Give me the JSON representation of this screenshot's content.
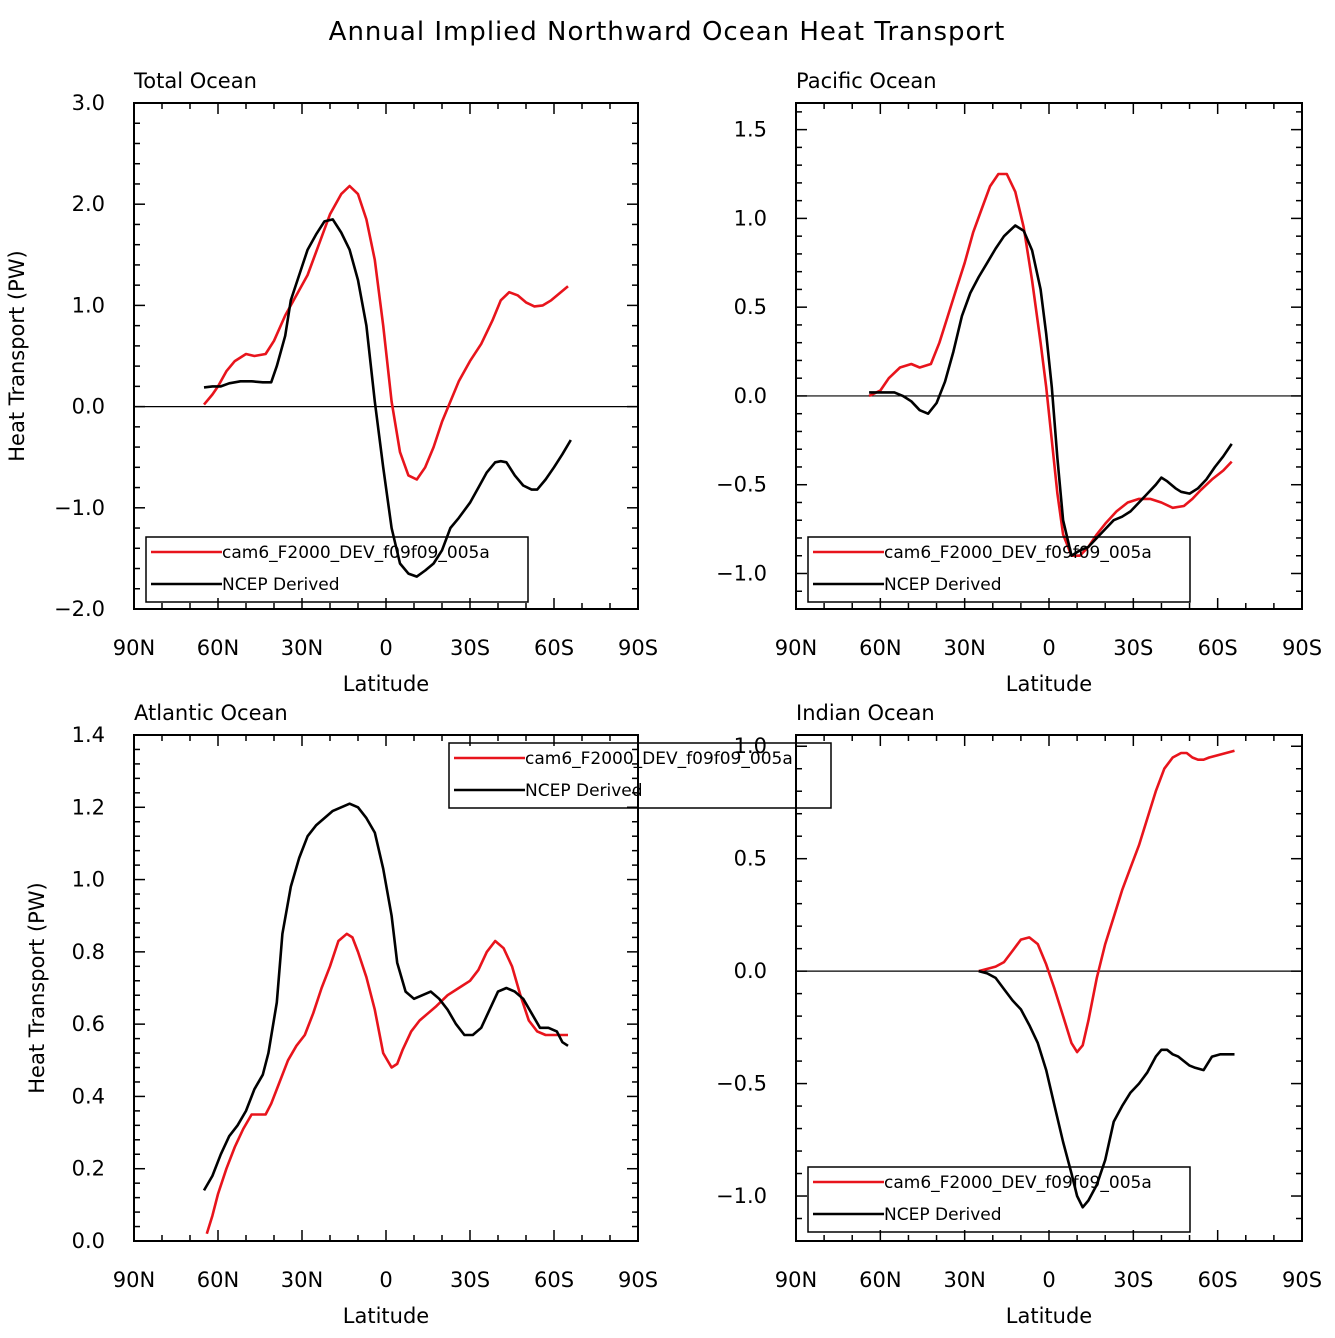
{
  "figure": {
    "title": "Annual Implied Northward Ocean Heat Transport"
  },
  "chart_data": [
    {
      "type": "line",
      "title": "Total Ocean",
      "xlabel": "Latitude",
      "ylabel": "Heat Transport (PW)",
      "xlim": [
        90,
        -90
      ],
      "ylim": [
        -2.0,
        3.0
      ],
      "xticks": [
        90,
        60,
        30,
        0,
        -30,
        -60,
        -90
      ],
      "xtick_labels": [
        "90N",
        "60N",
        "30N",
        "0",
        "30S",
        "60S",
        "90S"
      ],
      "yticks": [
        -2.0,
        -1.0,
        0.0,
        1.0,
        2.0,
        3.0
      ],
      "ytick_labels": [
        "−2.0",
        "−1.0",
        "0.0",
        "1.0",
        "2.0",
        "3.0"
      ],
      "zero_line": true,
      "legend": {
        "position": "bottom-left",
        "entries": [
          "cam6_F2000_DEV_f09f09_005a",
          "NCEP Derived"
        ]
      },
      "series": [
        {
          "name": "cam6_F2000_DEV_f09f09_005a",
          "color": "#e8141c",
          "x": [
            65,
            62,
            60,
            57,
            54,
            50,
            47,
            43,
            40,
            36,
            32,
            28,
            24,
            20,
            16,
            13,
            10,
            7,
            4,
            1,
            -2,
            -5,
            -8,
            -11,
            -14,
            -17,
            -20,
            -23,
            -26,
            -30,
            -34,
            -38,
            -41,
            -44,
            -47,
            -50,
            -53,
            -56,
            -59,
            -62,
            -65
          ],
          "y": [
            0.02,
            0.12,
            0.2,
            0.35,
            0.45,
            0.52,
            0.5,
            0.52,
            0.65,
            0.9,
            1.1,
            1.3,
            1.6,
            1.9,
            2.1,
            2.18,
            2.1,
            1.85,
            1.45,
            0.8,
            0.05,
            -0.45,
            -0.68,
            -0.72,
            -0.6,
            -0.4,
            -0.15,
            0.05,
            0.25,
            0.45,
            0.62,
            0.85,
            1.05,
            1.13,
            1.1,
            1.03,
            0.99,
            1.0,
            1.05,
            1.12,
            1.19
          ]
        },
        {
          "name": "NCEP Derived",
          "color": "#000000",
          "x": [
            65,
            62,
            59,
            56,
            52,
            48,
            44,
            41,
            39,
            36,
            34,
            31,
            28,
            25,
            22,
            19,
            16,
            13,
            10,
            7,
            4,
            1,
            -2,
            -5,
            -8,
            -11,
            -14,
            -17,
            -20,
            -23,
            -26,
            -30,
            -33,
            -36,
            -39,
            -41,
            -43,
            -46,
            -49,
            -52,
            -54,
            -57,
            -60,
            -63,
            -66
          ],
          "y": [
            0.19,
            0.2,
            0.2,
            0.23,
            0.25,
            0.25,
            0.24,
            0.24,
            0.4,
            0.7,
            1.05,
            1.3,
            1.55,
            1.7,
            1.83,
            1.85,
            1.72,
            1.55,
            1.25,
            0.8,
            0.05,
            -0.6,
            -1.2,
            -1.55,
            -1.65,
            -1.68,
            -1.62,
            -1.55,
            -1.42,
            -1.2,
            -1.1,
            -0.95,
            -0.8,
            -0.65,
            -0.55,
            -0.54,
            -0.55,
            -0.68,
            -0.78,
            -0.82,
            -0.82,
            -0.72,
            -0.6,
            -0.47,
            -0.33
          ]
        }
      ]
    },
    {
      "type": "line",
      "title": "Pacific Ocean",
      "xlabel": "Latitude",
      "ylabel": "",
      "xlim": [
        90,
        -90
      ],
      "ylim": [
        -1.2,
        1.65
      ],
      "xticks": [
        90,
        60,
        30,
        0,
        -30,
        -60,
        -90
      ],
      "xtick_labels": [
        "90N",
        "60N",
        "30N",
        "0",
        "30S",
        "60S",
        "90S"
      ],
      "yticks": [
        -1.0,
        -0.5,
        0.0,
        0.5,
        1.0,
        1.5
      ],
      "ytick_labels": [
        "−1.0",
        "−0.5",
        "0.0",
        "0.5",
        "1.0",
        "1.5"
      ],
      "zero_line": true,
      "legend": {
        "position": "bottom-right",
        "entries": [
          "cam6_F2000_DEV_f09f09_005a",
          "NCEP Derived"
        ]
      },
      "series": [
        {
          "name": "cam6_F2000_DEV_f09f09_005a",
          "color": "#e8141c",
          "x": [
            64,
            60,
            57,
            53,
            49,
            46,
            42,
            39,
            36,
            33,
            30,
            27,
            24,
            21,
            18,
            15,
            12,
            9,
            6,
            3,
            1,
            -1,
            -3,
            -5,
            -8,
            -11,
            -14,
            -17,
            -20,
            -24,
            -28,
            -32,
            -36,
            -40,
            -44,
            -48,
            -51,
            -54,
            -58,
            -62,
            -65
          ],
          "y": [
            0.0,
            0.03,
            0.1,
            0.16,
            0.18,
            0.16,
            0.18,
            0.3,
            0.45,
            0.6,
            0.75,
            0.92,
            1.05,
            1.18,
            1.25,
            1.25,
            1.15,
            0.95,
            0.65,
            0.3,
            0.05,
            -0.25,
            -0.55,
            -0.78,
            -0.9,
            -0.9,
            -0.85,
            -0.78,
            -0.72,
            -0.65,
            -0.6,
            -0.58,
            -0.58,
            -0.6,
            -0.63,
            -0.62,
            -0.58,
            -0.53,
            -0.47,
            -0.42,
            -0.37
          ]
        },
        {
          "name": "NCEP Derived",
          "color": "#000000",
          "x": [
            64,
            61,
            58,
            55,
            52,
            49,
            46,
            43,
            40,
            37,
            34,
            31,
            28,
            25,
            22,
            19,
            16,
            14,
            12,
            9,
            6,
            3,
            1,
            -1,
            -3,
            -5,
            -8,
            -11,
            -14,
            -17,
            -20,
            -23,
            -26,
            -29,
            -32,
            -35,
            -38,
            -40,
            -42,
            -45,
            -47,
            -50,
            -53,
            -56,
            -59,
            -62,
            -65
          ],
          "y": [
            0.02,
            0.02,
            0.02,
            0.02,
            0.0,
            -0.03,
            -0.08,
            -0.1,
            -0.04,
            0.08,
            0.25,
            0.45,
            0.58,
            0.67,
            0.75,
            0.83,
            0.9,
            0.93,
            0.96,
            0.93,
            0.82,
            0.6,
            0.35,
            0.05,
            -0.35,
            -0.7,
            -0.9,
            -0.87,
            -0.85,
            -0.8,
            -0.75,
            -0.7,
            -0.68,
            -0.65,
            -0.6,
            -0.55,
            -0.5,
            -0.46,
            -0.48,
            -0.52,
            -0.54,
            -0.55,
            -0.52,
            -0.47,
            -0.4,
            -0.34,
            -0.27
          ]
        }
      ]
    },
    {
      "type": "line",
      "title": "Atlantic Ocean",
      "xlabel": "Latitude",
      "ylabel": "Heat Transport (PW)",
      "xlim": [
        90,
        -90
      ],
      "ylim": [
        0.0,
        1.4
      ],
      "xticks": [
        90,
        60,
        30,
        0,
        -30,
        -60,
        -90
      ],
      "xtick_labels": [
        "90N",
        "60N",
        "30N",
        "0",
        "30S",
        "60S",
        "90S"
      ],
      "yticks": [
        0.0,
        0.2,
        0.4,
        0.6,
        0.8,
        1.0,
        1.2,
        1.4
      ],
      "ytick_labels": [
        "0.0",
        "0.2",
        "0.4",
        "0.6",
        "0.8",
        "1.0",
        "1.2",
        "1.4"
      ],
      "zero_line": false,
      "legend": {
        "position": "top-center",
        "entries": [
          "cam6_F2000_DEV_f09f09_005a",
          "NCEP Derived"
        ]
      },
      "series": [
        {
          "name": "cam6_F2000_DEV_f09f09_005a",
          "color": "#e8141c",
          "x": [
            64,
            62,
            60,
            57,
            54,
            51,
            48,
            45,
            43,
            41,
            38,
            35,
            32,
            29,
            26,
            23,
            20,
            17,
            14,
            12,
            10,
            7,
            4,
            1,
            -2,
            -4,
            -6,
            -9,
            -12,
            -15,
            -18,
            -22,
            -26,
            -30,
            -33,
            -36,
            -39,
            -42,
            -45,
            -48,
            -51,
            -54,
            -57,
            -60,
            -63,
            -65
          ],
          "y": [
            0.02,
            0.07,
            0.13,
            0.2,
            0.26,
            0.31,
            0.35,
            0.35,
            0.35,
            0.38,
            0.44,
            0.5,
            0.54,
            0.57,
            0.63,
            0.7,
            0.76,
            0.83,
            0.85,
            0.84,
            0.8,
            0.73,
            0.64,
            0.52,
            0.48,
            0.49,
            0.53,
            0.58,
            0.61,
            0.63,
            0.65,
            0.68,
            0.7,
            0.72,
            0.75,
            0.8,
            0.83,
            0.81,
            0.76,
            0.68,
            0.61,
            0.58,
            0.57,
            0.57,
            0.57,
            0.57
          ]
        },
        {
          "name": "NCEP Derived",
          "color": "#000000",
          "x": [
            65,
            62,
            59,
            56,
            53,
            50,
            47,
            44,
            42,
            39,
            37,
            34,
            31,
            28,
            25,
            22,
            19,
            16,
            13,
            10,
            7,
            4,
            1,
            -2,
            -4,
            -7,
            -10,
            -13,
            -16,
            -19,
            -22,
            -25,
            -28,
            -31,
            -34,
            -37,
            -40,
            -43,
            -46,
            -49,
            -52,
            -55,
            -58,
            -61,
            -63,
            -65
          ],
          "y": [
            0.14,
            0.18,
            0.24,
            0.29,
            0.32,
            0.36,
            0.42,
            0.46,
            0.52,
            0.66,
            0.85,
            0.98,
            1.06,
            1.12,
            1.15,
            1.17,
            1.19,
            1.2,
            1.21,
            1.2,
            1.17,
            1.13,
            1.03,
            0.9,
            0.77,
            0.69,
            0.67,
            0.68,
            0.69,
            0.67,
            0.64,
            0.6,
            0.57,
            0.57,
            0.59,
            0.64,
            0.69,
            0.7,
            0.69,
            0.67,
            0.63,
            0.59,
            0.59,
            0.58,
            0.55,
            0.54
          ]
        }
      ]
    },
    {
      "type": "line",
      "title": "Indian Ocean",
      "xlabel": "Latitude",
      "ylabel": "",
      "xlim": [
        90,
        -90
      ],
      "ylim": [
        -1.2,
        1.05
      ],
      "xticks": [
        90,
        60,
        30,
        0,
        -30,
        -60,
        -90
      ],
      "xtick_labels": [
        "90N",
        "60N",
        "30N",
        "0",
        "30S",
        "60S",
        "90S"
      ],
      "yticks": [
        -1.0,
        -0.5,
        0.0,
        0.5,
        1.0
      ],
      "ytick_labels": [
        "−1.0",
        "−0.5",
        "0.0",
        "0.5",
        "1.0"
      ],
      "zero_line": true,
      "legend": {
        "position": "bottom-right",
        "entries": [
          "cam6_F2000_DEV_f09f09_005a",
          "NCEP Derived"
        ]
      },
      "series": [
        {
          "name": "cam6_F2000_DEV_f09f09_005a",
          "color": "#e8141c",
          "x": [
            25,
            22,
            19,
            16,
            13,
            10,
            7,
            4,
            1,
            -2,
            -5,
            -8,
            -10,
            -12,
            -14,
            -17,
            -20,
            -23,
            -26,
            -29,
            -32,
            -35,
            -38,
            -41,
            -44,
            -47,
            -49,
            -51,
            -53,
            -55,
            -57,
            -60,
            -63,
            -66
          ],
          "y": [
            0.0,
            0.01,
            0.02,
            0.04,
            0.09,
            0.14,
            0.15,
            0.12,
            0.03,
            -0.08,
            -0.2,
            -0.32,
            -0.36,
            -0.33,
            -0.22,
            -0.03,
            0.12,
            0.24,
            0.36,
            0.46,
            0.56,
            0.68,
            0.8,
            0.9,
            0.95,
            0.97,
            0.97,
            0.95,
            0.94,
            0.94,
            0.95,
            0.96,
            0.97,
            0.98
          ]
        },
        {
          "name": "NCEP Derived",
          "color": "#000000",
          "x": [
            25,
            22,
            19,
            16,
            13,
            10,
            7,
            4,
            1,
            -2,
            -5,
            -8,
            -10,
            -12,
            -14,
            -17,
            -20,
            -23,
            -26,
            -29,
            -32,
            -35,
            -38,
            -40,
            -42,
            -44,
            -46,
            -48,
            -50,
            -52,
            -55,
            -58,
            -61,
            -64,
            -66
          ],
          "y": [
            0.0,
            -0.01,
            -0.03,
            -0.08,
            -0.13,
            -0.17,
            -0.24,
            -0.32,
            -0.44,
            -0.6,
            -0.76,
            -0.9,
            -1.0,
            -1.05,
            -1.02,
            -0.95,
            -0.84,
            -0.67,
            -0.6,
            -0.54,
            -0.5,
            -0.45,
            -0.38,
            -0.35,
            -0.35,
            -0.37,
            -0.38,
            -0.4,
            -0.42,
            -0.43,
            -0.44,
            -0.38,
            -0.37,
            -0.37,
            -0.37
          ]
        }
      ]
    }
  ]
}
